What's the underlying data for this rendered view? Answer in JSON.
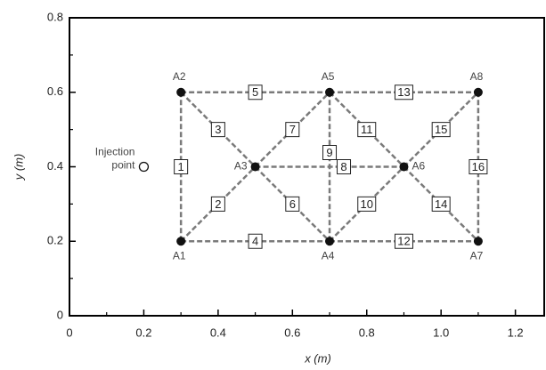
{
  "chart_data": {
    "type": "network",
    "xlabel": "x (m)",
    "ylabel": "y (m)",
    "xlim": [
      0,
      1.28
    ],
    "ylim": [
      0,
      0.8
    ],
    "xticks": [
      0,
      0.2,
      0.4,
      0.6,
      0.8,
      {
        "value": 1,
        "label": "1.0"
      },
      1.2
    ],
    "yticks": [
      0,
      0.2,
      0.4,
      0.6,
      0.8
    ],
    "xminorticks": [
      0.1,
      0.3,
      0.5,
      0.7,
      0.9,
      1.1
    ],
    "yminorticks": [
      0.1,
      0.3,
      0.5,
      0.7
    ],
    "node_color": "#111",
    "edge_color": "#7a7a7a",
    "nodes": [
      {
        "label": "A1",
        "x": 0.3,
        "y": 0.2
      },
      {
        "label": "A2",
        "x": 0.3,
        "y": 0.6
      },
      {
        "label": "A3",
        "x": 0.5,
        "y": 0.4
      },
      {
        "label": "A4",
        "x": 0.7,
        "y": 0.2
      },
      {
        "label": "A5",
        "x": 0.7,
        "y": 0.6
      },
      {
        "label": "A6",
        "x": 0.9,
        "y": 0.4
      },
      {
        "label": "A7",
        "x": 1.1,
        "y": 0.2
      },
      {
        "label": "A8",
        "x": 1.1,
        "y": 0.6
      }
    ],
    "edges": [
      {
        "label": "1",
        "from": 0,
        "to": 1
      },
      {
        "label": "2",
        "from": 0,
        "to": 2
      },
      {
        "label": "3",
        "from": 1,
        "to": 2
      },
      {
        "label": "4",
        "from": 0,
        "to": 3
      },
      {
        "label": "5",
        "from": 1,
        "to": 4
      },
      {
        "label": "6",
        "from": 2,
        "to": 3
      },
      {
        "label": "7",
        "from": 2,
        "to": 4
      },
      {
        "label": "8",
        "from": 2,
        "to": 5
      },
      {
        "label": "9",
        "from": 3,
        "to": 4
      },
      {
        "label": "10",
        "from": 3,
        "to": 5
      },
      {
        "label": "11",
        "from": 4,
        "to": 5
      },
      {
        "label": "12",
        "from": 3,
        "to": 6
      },
      {
        "label": "13",
        "from": 4,
        "to": 7
      },
      {
        "label": "14",
        "from": 5,
        "to": 6
      },
      {
        "label": "15",
        "from": 5,
        "to": 7
      },
      {
        "label": "16",
        "from": 6,
        "to": 7
      }
    ],
    "annotation": {
      "text": [
        "Injection",
        "point"
      ],
      "x": 0.2,
      "y": 0.4
    }
  }
}
